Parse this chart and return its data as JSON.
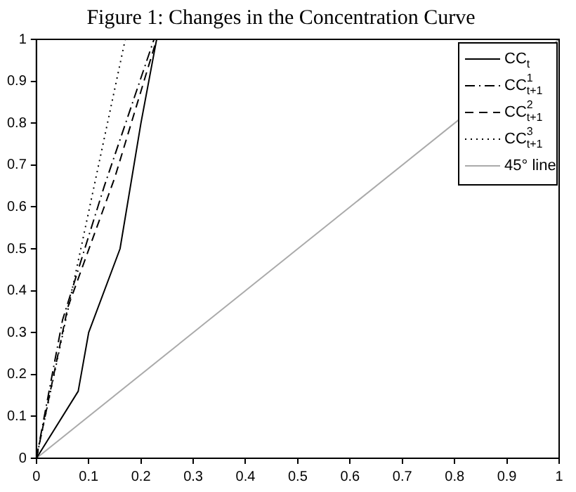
{
  "chart_data": {
    "type": "line",
    "title": "Figure 1: Changes in the Concentration Curve",
    "xlim": [
      0,
      1
    ],
    "ylim": [
      0,
      1
    ],
    "xticks": [
      0,
      0.1,
      0.2,
      0.3,
      0.4,
      0.5,
      0.6,
      0.7,
      0.8,
      0.9,
      1
    ],
    "yticks": [
      0,
      0.1,
      0.2,
      0.3,
      0.4,
      0.5,
      0.6,
      0.7,
      0.8,
      0.9,
      1
    ],
    "grid": false,
    "legend": "top right",
    "marker": "none",
    "series": [
      {
        "name": "CC$_{t}$",
        "color": "#000000",
        "line_style": "solid",
        "x": [
          0,
          0.08,
          0.1,
          0.16,
          0.2,
          0.23
        ],
        "values": [
          0,
          0.16,
          0.3,
          0.5,
          0.8,
          1
        ]
      },
      {
        "name": "CC$^{1}$$_{t+1}$",
        "color": "#000000",
        "line_style": "dashdot",
        "x": [
          0,
          0.05,
          0.13,
          0.225
        ],
        "values": [
          0,
          0.33,
          0.65,
          1
        ]
      },
      {
        "name": "CC$^{2}$$_{t+1}$",
        "color": "#000000",
        "line_style": "dashed",
        "x": [
          0,
          0.06,
          0.15,
          0.23
        ],
        "values": [
          0,
          0.36,
          0.67,
          1
        ]
      },
      {
        "name": "CC$^{3}$$_{t+1}$",
        "color": "#000000",
        "line_style": "dotted",
        "x": [
          0,
          0.17
        ],
        "values": [
          0,
          1
        ]
      },
      {
        "name": "45° line",
        "color": "#aaaaaa",
        "line_style": "solid",
        "x": [
          0,
          1
        ],
        "values": [
          0,
          1
        ]
      }
    ]
  }
}
